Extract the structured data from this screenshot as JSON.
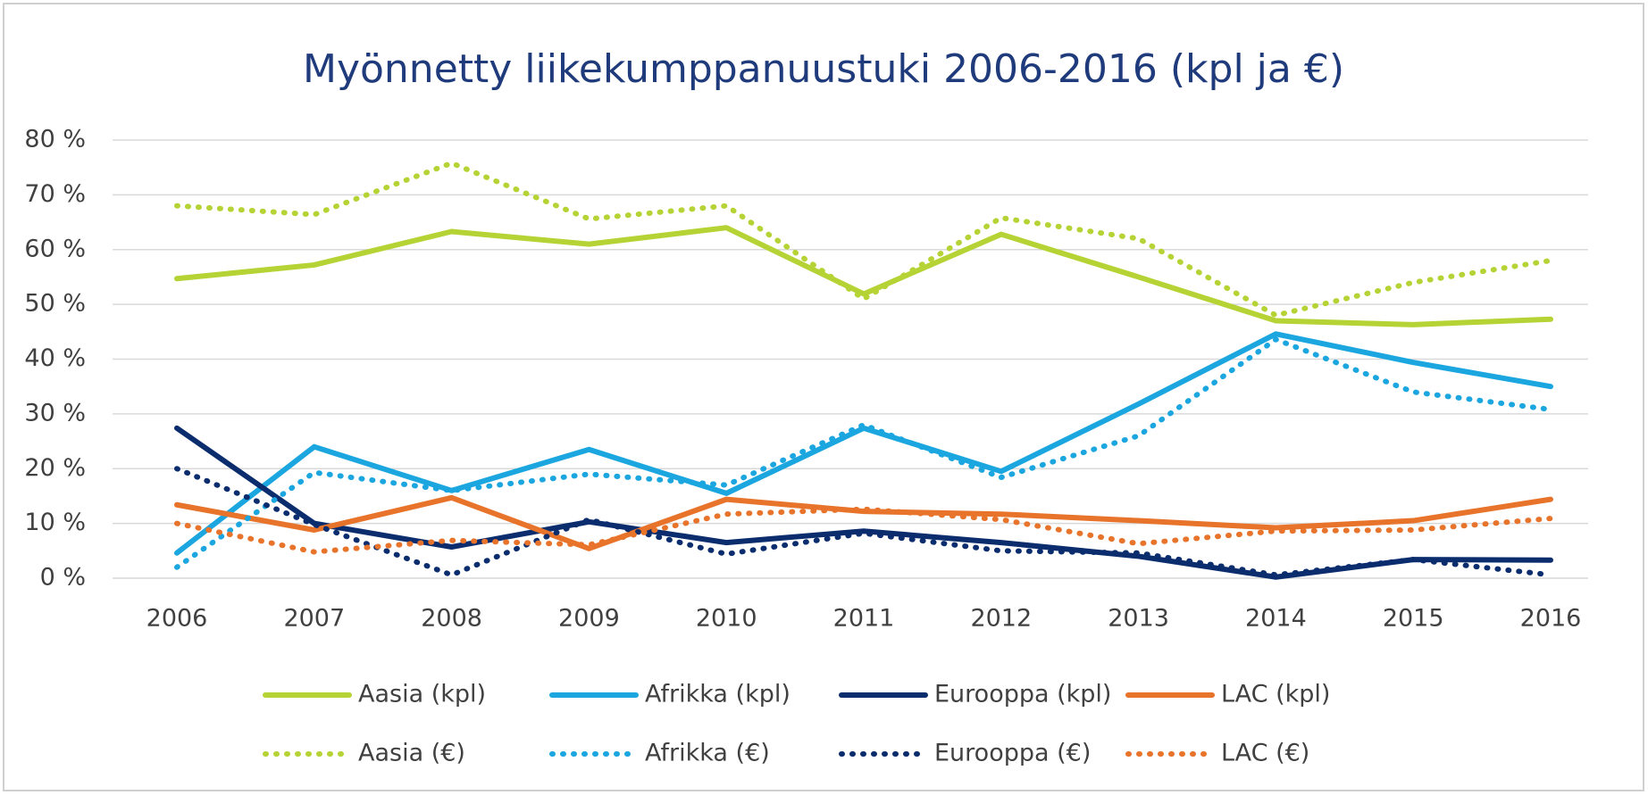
{
  "chart_data": {
    "type": "line",
    "title": "Myönnetty liikekumppanuustuki 2006-2016 (kpl ja €)",
    "categories": [
      "2006",
      "2007",
      "2008",
      "2009",
      "2010",
      "2011",
      "2012",
      "2013",
      "2014",
      "2015",
      "2016"
    ],
    "ylim": [
      0,
      80
    ],
    "yticks": [
      {
        "value": 0,
        "label": "0 %"
      },
      {
        "value": 10,
        "label": "10 %"
      },
      {
        "value": 20,
        "label": "20 %"
      },
      {
        "value": 30,
        "label": "30 %"
      },
      {
        "value": 40,
        "label": "40 %"
      },
      {
        "value": 50,
        "label": "50 %"
      },
      {
        "value": 60,
        "label": "60 %"
      },
      {
        "value": 70,
        "label": "70 %"
      },
      {
        "value": 80,
        "label": "80 %"
      }
    ],
    "grid": true,
    "series": [
      {
        "name": "Aasia (kpl)",
        "color": "#b5d334",
        "line_style": "solid",
        "values": [
          54.7,
          57.2,
          63.3,
          61,
          64,
          51.9,
          62.8,
          55,
          47,
          46.3,
          47.3
        ]
      },
      {
        "name": "Afrikka (kpl)",
        "color": "#1ba6e0",
        "line_style": "solid",
        "values": [
          4.6,
          24,
          16,
          23.5,
          15.5,
          27.4,
          19.5,
          31.8,
          44.6,
          39.4,
          35
        ]
      },
      {
        "name": "Eurooppa (kpl)",
        "color": "#0b2d6e",
        "line_style": "solid",
        "values": [
          27.4,
          10,
          5.7,
          10.3,
          6.5,
          8.6,
          6.5,
          4,
          0.2,
          3.4,
          3.3
        ]
      },
      {
        "name": "LAC (kpl)",
        "color": "#e8732a",
        "line_style": "solid",
        "values": [
          13.4,
          8.8,
          14.7,
          5.4,
          14.4,
          12.2,
          11.7,
          10.5,
          9.2,
          10.5,
          14.4
        ]
      },
      {
        "name": "Aasia (€)",
        "color": "#b5d334",
        "line_style": "dotted",
        "values": [
          68,
          66.4,
          75.8,
          65.6,
          68,
          51,
          65.8,
          62,
          48,
          54,
          58
        ]
      },
      {
        "name": "Afrikka (€)",
        "color": "#1ba6e0",
        "line_style": "dotted",
        "values": [
          2,
          19.3,
          16,
          19,
          17,
          28,
          18.4,
          26,
          43.6,
          34,
          30.8
        ]
      },
      {
        "name": "Eurooppa (€)",
        "color": "#0b2d6e",
        "line_style": "dotted",
        "values": [
          20,
          9.8,
          0.6,
          10.7,
          4.4,
          8.2,
          5,
          4.6,
          0.6,
          3.4,
          0.6
        ]
      },
      {
        "name": "LAC (€)",
        "color": "#e8732a",
        "line_style": "dotted",
        "values": [
          10,
          4.8,
          6.9,
          6.1,
          11.7,
          12.6,
          10.7,
          6.3,
          8.6,
          8.8,
          10.9
        ]
      }
    ]
  }
}
